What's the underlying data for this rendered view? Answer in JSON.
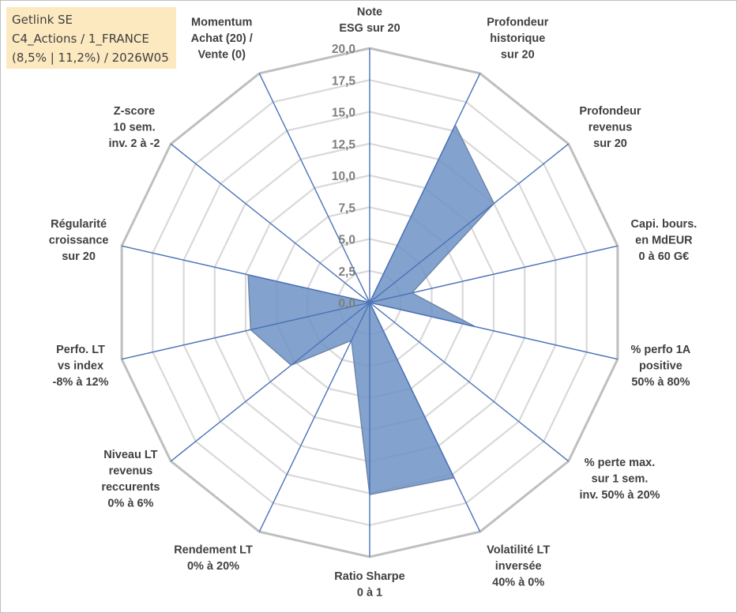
{
  "info": {
    "line1": "Getlink SE",
    "line2": "C4_Actions / 1_FRANCE",
    "line3": "(8,5% | 11,2%) / 2026W05"
  },
  "chart_data": {
    "type": "radar",
    "title": "Getlink SE",
    "rlim": [
      0,
      20
    ],
    "ticks": [
      "0,0",
      "2,5",
      "5,0",
      "7,5",
      "10,0",
      "12,5",
      "15,0",
      "17,5",
      "20,0"
    ],
    "grid": true,
    "axes": [
      [
        "Note",
        "ESG sur 20"
      ],
      [
        "Profondeur",
        "historique",
        "sur 20"
      ],
      [
        "Profondeur",
        "revenus",
        "sur 20"
      ],
      [
        "Capi. bours.",
        "en MdEUR",
        "0 à 60 G€"
      ],
      [
        "% perfo 1A",
        "positive",
        "50% à 80%"
      ],
      [
        "% perte max.",
        "sur 1 sem.",
        "inv. 50% à 20%"
      ],
      [
        "Volatilité LT",
        "inversée",
        "40% à 0%"
      ],
      [
        "Ratio Sharpe",
        "0 à 1"
      ],
      [
        "Rendement LT",
        "0% à 20%"
      ],
      [
        "Niveau LT",
        "revenus",
        "reccurents",
        "0% à 6%"
      ],
      [
        "Perfo. LT",
        "vs index",
        "-8% à 12%"
      ],
      [
        "Régularité",
        "croissance",
        "sur 20"
      ],
      [
        "Z-score",
        "10 sem.",
        "inv. 2 à -2"
      ],
      [
        "Momentum",
        "Achat (20) /",
        "Vente (0)"
      ]
    ],
    "series": [
      {
        "name": "Getlink SE",
        "color": "#6d93c6",
        "values": [
          0,
          15.5,
          12.5,
          3.4,
          8.5,
          0,
          15.3,
          15.1,
          3.3,
          7.9,
          9.6,
          9.8,
          0,
          0
        ]
      }
    ]
  }
}
